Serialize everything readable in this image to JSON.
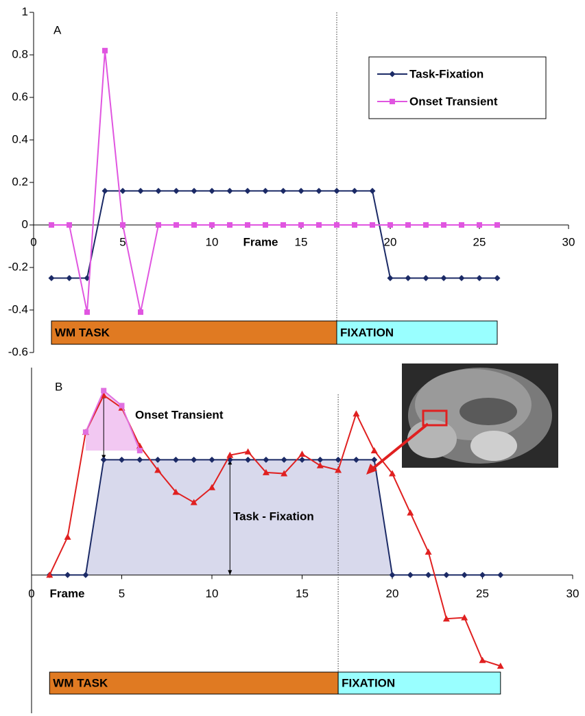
{
  "chart_data": [
    {
      "type": "line",
      "panel_label": "A",
      "x_label": "Frame",
      "xlim": [
        0,
        30
      ],
      "xticks": [
        0,
        5,
        10,
        15,
        20,
        25,
        30
      ],
      "ylim": [
        -0.6,
        1
      ],
      "yticks": [
        -0.6,
        -0.4,
        -0.2,
        0,
        0.2,
        0.4,
        0.6,
        0.8,
        1
      ],
      "x": [
        1,
        2,
        3,
        4,
        5,
        6,
        7,
        8,
        9,
        10,
        11,
        12,
        13,
        14,
        15,
        16,
        17,
        18,
        19,
        20,
        21,
        22,
        23,
        24,
        25,
        26
      ],
      "series": [
        {
          "name": "Task-Fixation",
          "color": "#1b2a66",
          "marker": "diamond",
          "values": [
            -0.25,
            -0.25,
            -0.25,
            0.16,
            0.16,
            0.16,
            0.16,
            0.16,
            0.16,
            0.16,
            0.16,
            0.16,
            0.16,
            0.16,
            0.16,
            0.16,
            0.16,
            0.16,
            0.16,
            -0.25,
            -0.25,
            -0.25,
            -0.25,
            -0.25,
            -0.25,
            -0.25
          ]
        },
        {
          "name": "Onset Transient",
          "color": "#e055e0",
          "marker": "square",
          "values": [
            0,
            0,
            -0.41,
            0.82,
            0,
            -0.41,
            0,
            0,
            0,
            0,
            0,
            0,
            0,
            0,
            0,
            0,
            0,
            0,
            0,
            0,
            0,
            0,
            0,
            0,
            0,
            0
          ]
        }
      ],
      "legend": "upper right",
      "divider": 17,
      "phases": [
        {
          "label": "WM TASK",
          "start": 1,
          "end": 17,
          "color": "#e07a22"
        },
        {
          "label": "FIXATION",
          "start": 17,
          "end": 26,
          "color": "#99ffff"
        }
      ]
    },
    {
      "type": "line",
      "panel_label": "B",
      "x_label": "Frame",
      "xlim": [
        0,
        30
      ],
      "xticks": [
        0,
        5,
        10,
        15,
        20,
        25,
        30
      ],
      "ylim": [
        -1.2,
        1.8
      ],
      "x": [
        1,
        2,
        3,
        4,
        5,
        6,
        7,
        8,
        9,
        10,
        11,
        12,
        13,
        14,
        15,
        16,
        17,
        18,
        19,
        20,
        21,
        22,
        23,
        24,
        25,
        26
      ],
      "series": [
        {
          "color": "#1b2a66",
          "marker": "diamond",
          "fill": "#d8d9ec",
          "values": [
            0,
            0,
            0,
            1,
            1,
            1,
            1,
            1,
            1,
            1,
            1,
            1,
            1,
            1,
            1,
            1,
            1,
            1,
            1,
            0,
            0,
            0,
            0,
            0,
            0,
            0
          ]
        },
        {
          "color": "#e02020",
          "marker": "triangle",
          "values": [
            0,
            0.33,
            1.24,
            1.56,
            1.45,
            1.12,
            0.91,
            0.72,
            0.63,
            0.76,
            1.04,
            1.07,
            0.89,
            0.88,
            1.05,
            0.95,
            0.91,
            1.4,
            1.08,
            0.88,
            0.54,
            0.2,
            -0.38,
            -0.37,
            -0.74,
            -0.79
          ]
        },
        {
          "color": "#e070e0",
          "marker": "square",
          "fill": "#f2c8f2",
          "values": [
            null,
            null,
            1.24,
            1.6,
            1.47,
            1.08,
            null,
            null,
            null,
            null,
            null,
            null,
            null,
            null,
            null,
            null,
            null,
            null,
            null,
            null,
            null,
            null,
            null,
            null,
            null,
            null
          ]
        }
      ],
      "annotations": [
        "Onset Transient",
        "Task - Fixation"
      ],
      "divider": 17,
      "phases": [
        {
          "label": "WM TASK",
          "start": 1,
          "end": 17,
          "color": "#e07a22"
        },
        {
          "label": "FIXATION",
          "start": 17,
          "end": 26,
          "color": "#99ffff"
        }
      ]
    }
  ]
}
